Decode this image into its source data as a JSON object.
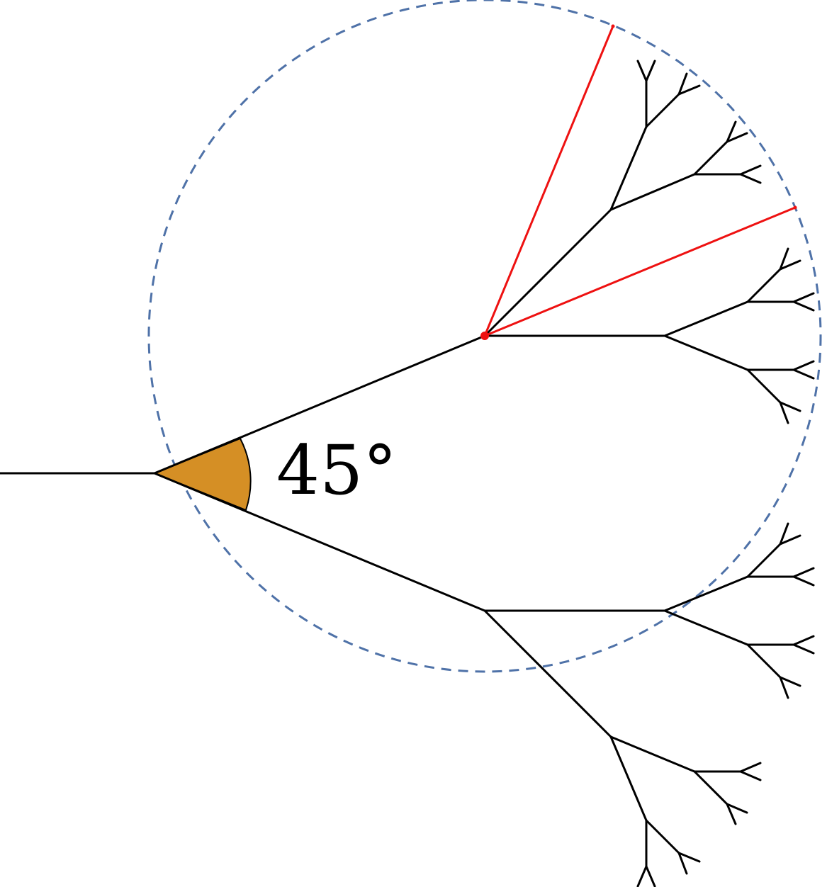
{
  "figure": {
    "angle_label": "45°",
    "branch_angle_degrees": 45,
    "tree_depth": 5,
    "colors": {
      "branch": "#000000",
      "highlight": "#ee1111",
      "circle": "#4f72a8",
      "angle_fill": "#d58f25"
    }
  }
}
